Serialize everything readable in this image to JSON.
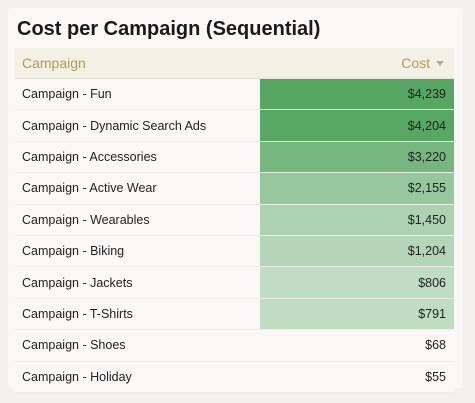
{
  "title": "Cost per Campaign (Sequential)",
  "table": {
    "headers": {
      "campaign": "Campaign",
      "cost": "Cost"
    },
    "sort_icon": "caret-down-icon",
    "colors": {
      "header_text": "#b39a52",
      "heat_base": "#4ea35b"
    },
    "rows": [
      {
        "campaign": "Campaign - Fun",
        "cost": "$4,239",
        "value": 4239
      },
      {
        "campaign": "Campaign - Dynamic Search Ads",
        "cost": "$4,204",
        "value": 4204
      },
      {
        "campaign": "Campaign - Accessories",
        "cost": "$3,220",
        "value": 3220
      },
      {
        "campaign": "Campaign - Active Wear",
        "cost": "$2,155",
        "value": 2155
      },
      {
        "campaign": "Campaign - Wearables",
        "cost": "$1,450",
        "value": 1450
      },
      {
        "campaign": "Campaign - Biking",
        "cost": "$1,204",
        "value": 1204
      },
      {
        "campaign": "Campaign - Jackets",
        "cost": "$806",
        "value": 806
      },
      {
        "campaign": "Campaign - T-Shirts",
        "cost": "$791",
        "value": 791
      },
      {
        "campaign": "Campaign - Shoes",
        "cost": "$68",
        "value": 68
      },
      {
        "campaign": "Campaign - Holiday",
        "cost": "$55",
        "value": 55
      }
    ]
  }
}
